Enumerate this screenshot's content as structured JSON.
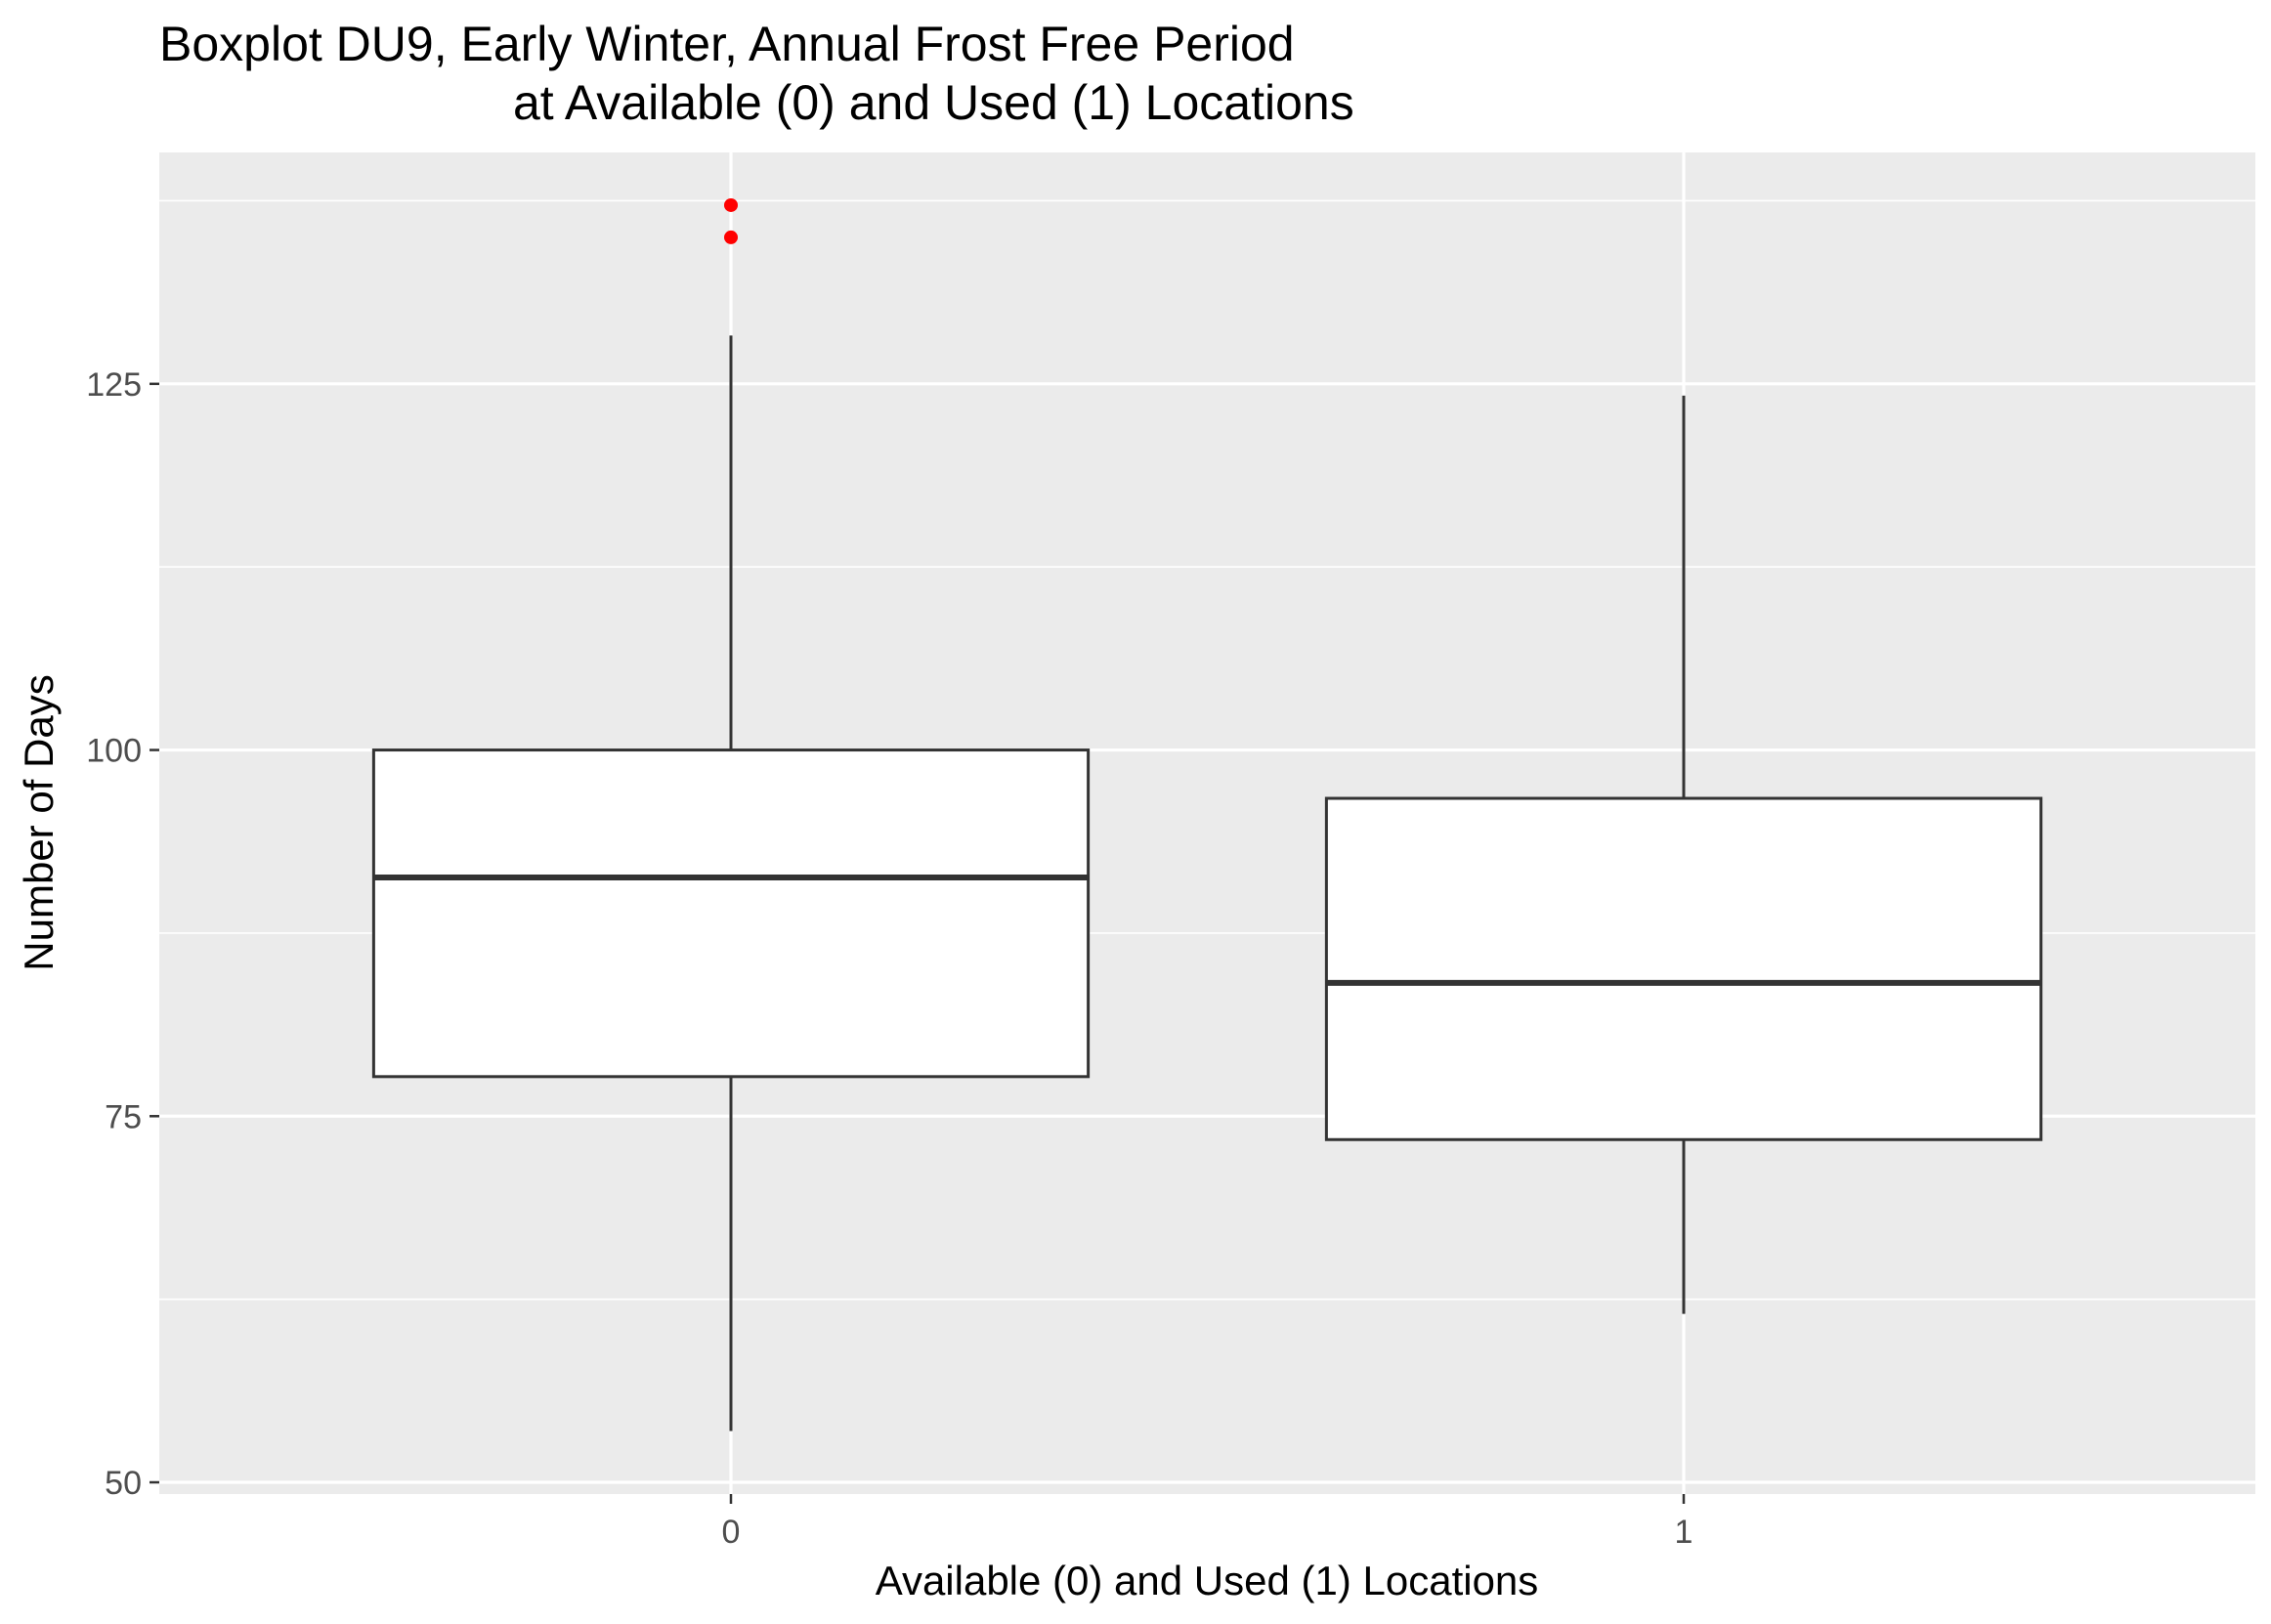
{
  "chart_data": {
    "type": "boxplot",
    "title_line1": "Boxplot DU9, Early Winter, Annual Frost Free Period",
    "title_line2": "at Available (0) and Used (1) Locations",
    "xlabel": "Available (0) and Used (1) Locations",
    "ylabel": "Number of Days",
    "categories": [
      "0",
      "1"
    ],
    "ylim": [
      49.2,
      140.8
    ],
    "yticks": [
      50,
      75,
      100,
      125
    ],
    "grid": true,
    "boxes": [
      {
        "category": "0",
        "whisker_low": 53.5,
        "q1": 77.7,
        "median": 91.3,
        "q3": 100.0,
        "whisker_high": 128.3,
        "outliers": [
          135.0,
          137.2
        ]
      },
      {
        "category": "1",
        "whisker_low": 61.5,
        "q1": 73.4,
        "median": 84.1,
        "q3": 96.7,
        "whisker_high": 124.2,
        "outliers": []
      }
    ],
    "colors": {
      "panel": "#ebebeb",
      "grid": "#ffffff",
      "box_fill": "#ffffff",
      "box_line": "#333333",
      "outlier": "#ff0000",
      "tick": "#4d4d4d"
    }
  }
}
